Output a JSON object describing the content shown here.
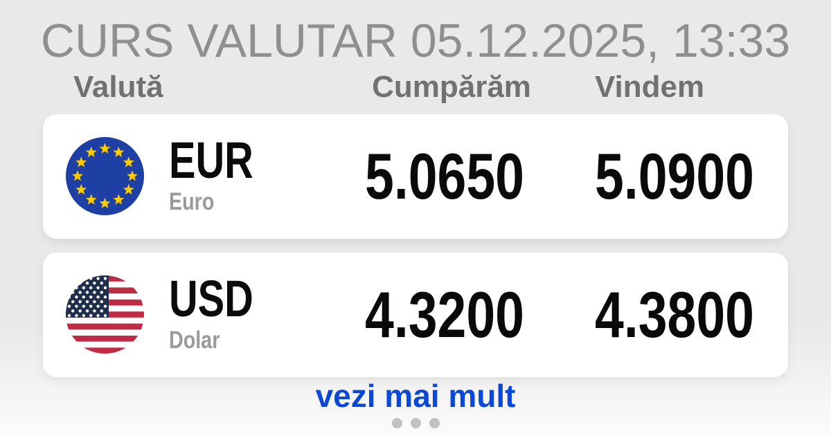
{
  "header": {
    "title": "CURS VALUTAR 05.12.2025, 13:33"
  },
  "columns": {
    "currency": "Valută",
    "buy": "Cumpărăm",
    "sell": "Vindem"
  },
  "rows": [
    {
      "code": "EUR",
      "name": "Euro",
      "buy": "5.0650",
      "sell": "5.0900",
      "flag_icon": "eu-flag-icon"
    },
    {
      "code": "USD",
      "name": "Dolar",
      "buy": "4.3200",
      "sell": "4.3800",
      "flag_icon": "us-flag-icon"
    }
  ],
  "footer": {
    "more_label": "vezi mai mult",
    "dots": 3
  },
  "colors": {
    "background_gray": "#e9e9e9",
    "title_gray": "#8f8f8f",
    "column_header_gray": "#717171",
    "value_black": "#0a0a0a",
    "sublabel_gray": "#9a9a9a",
    "link_blue": "#0b48d8",
    "dot_gray": "#c1c1c1",
    "eu_flag_blue": "#1e3fa3",
    "eu_star_yellow": "#ffcc00",
    "us_flag_navy": "#1f2e4a",
    "us_flag_red": "#bf2a44"
  }
}
